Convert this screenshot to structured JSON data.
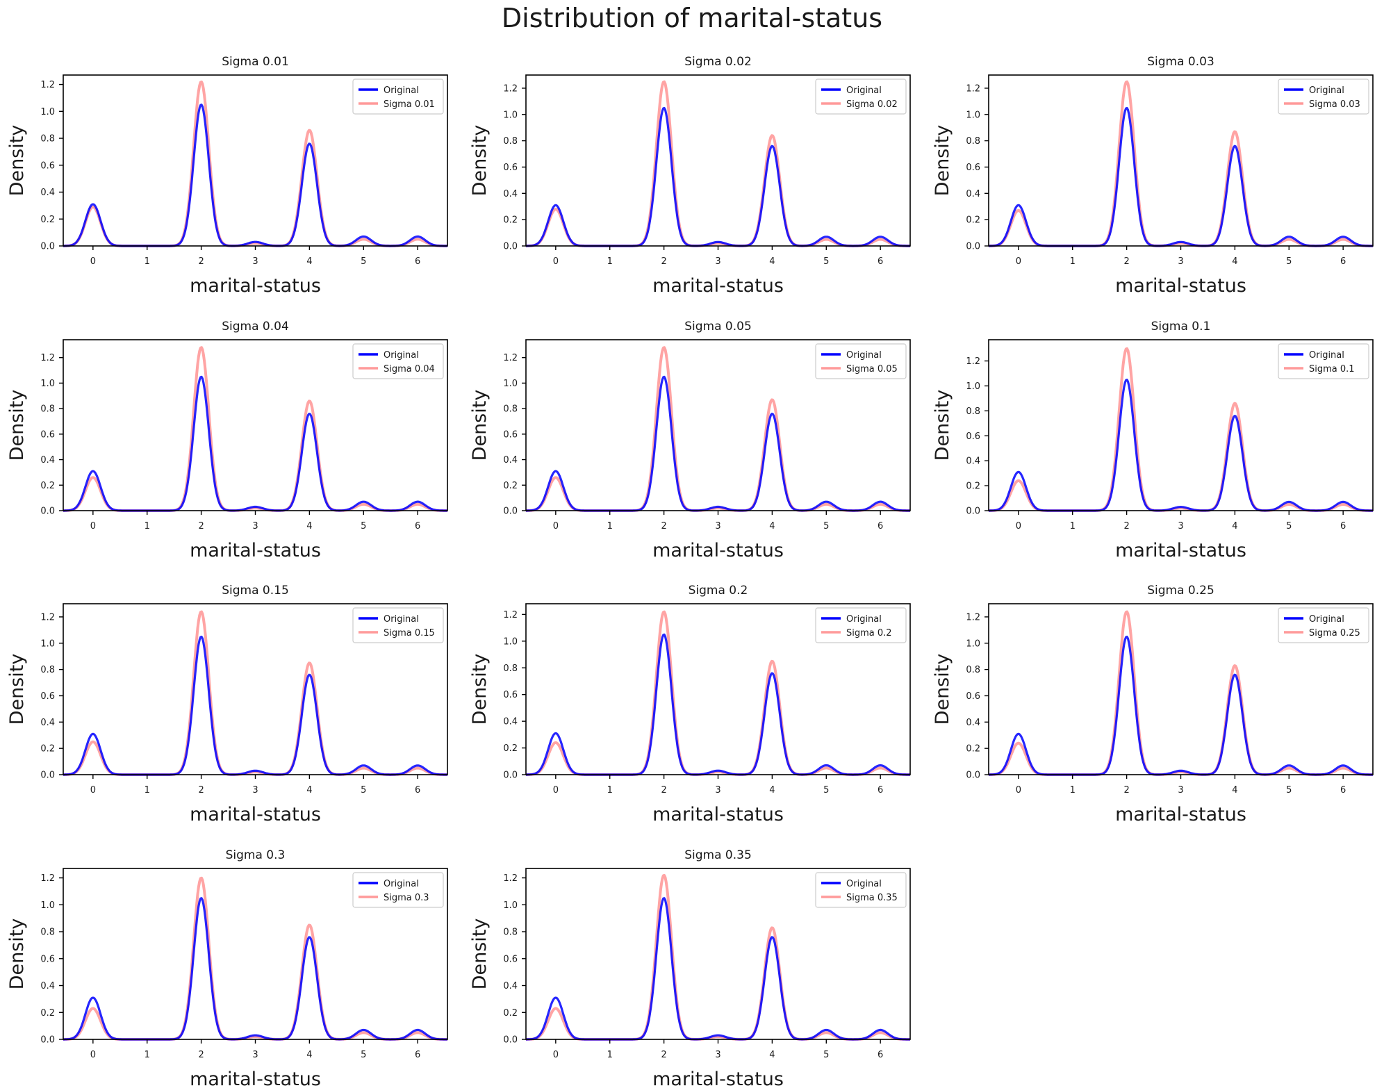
{
  "title": "Distribution of marital-status",
  "colors": {
    "original": "#0000ff",
    "noisy": "#ff9a9a",
    "axis": "#000000"
  },
  "chart_data": [
    {
      "type": "line",
      "title": "Sigma 0.01",
      "xlabel": "marital-status",
      "ylabel": "Density",
      "xlim": [
        -0.55,
        6.55
      ],
      "ylim": [
        0,
        1.27
      ],
      "xticks": [
        0,
        1,
        2,
        3,
        4,
        5,
        6
      ],
      "yticks": [
        0.0,
        0.2,
        0.4,
        0.6,
        0.8,
        1.0,
        1.2
      ],
      "legend": "top-right",
      "series": [
        {
          "name": "Original",
          "peaks": [
            [
              0,
              0.31
            ],
            [
              2,
              1.05
            ],
            [
              3,
              0.03
            ],
            [
              4,
              0.76
            ],
            [
              5,
              0.07
            ],
            [
              6,
              0.07
            ]
          ]
        },
        {
          "name": "Sigma 0.01",
          "peaks": [
            [
              0,
              0.29
            ],
            [
              2,
              1.22
            ],
            [
              3,
              0.02
            ],
            [
              4,
              0.86
            ],
            [
              5,
              0.05
            ],
            [
              6,
              0.05
            ]
          ]
        }
      ]
    },
    {
      "type": "line",
      "title": "Sigma 0.02",
      "xlabel": "marital-status",
      "ylabel": "Density",
      "xlim": [
        -0.55,
        6.55
      ],
      "ylim": [
        0,
        1.3
      ],
      "xticks": [
        0,
        1,
        2,
        3,
        4,
        5,
        6
      ],
      "yticks": [
        0.0,
        0.2,
        0.4,
        0.6,
        0.8,
        1.0,
        1.2
      ],
      "legend": "top-right",
      "series": [
        {
          "name": "Original",
          "peaks": [
            [
              0,
              0.31
            ],
            [
              2,
              1.05
            ],
            [
              3,
              0.03
            ],
            [
              4,
              0.76
            ],
            [
              5,
              0.07
            ],
            [
              6,
              0.07
            ]
          ]
        },
        {
          "name": "Sigma 0.02",
          "peaks": [
            [
              0,
              0.28
            ],
            [
              2,
              1.25
            ],
            [
              3,
              0.02
            ],
            [
              4,
              0.84
            ],
            [
              5,
              0.05
            ],
            [
              6,
              0.05
            ]
          ]
        }
      ]
    },
    {
      "type": "line",
      "title": "Sigma 0.03",
      "xlabel": "marital-status",
      "ylabel": "Density",
      "xlim": [
        -0.55,
        6.55
      ],
      "ylim": [
        0,
        1.3
      ],
      "xticks": [
        0,
        1,
        2,
        3,
        4,
        5,
        6
      ],
      "yticks": [
        0.0,
        0.2,
        0.4,
        0.6,
        0.8,
        1.0,
        1.2
      ],
      "legend": "top-right",
      "series": [
        {
          "name": "Original",
          "peaks": [
            [
              0,
              0.31
            ],
            [
              2,
              1.05
            ],
            [
              3,
              0.03
            ],
            [
              4,
              0.76
            ],
            [
              5,
              0.07
            ],
            [
              6,
              0.07
            ]
          ]
        },
        {
          "name": "Sigma 0.03",
          "peaks": [
            [
              0,
              0.27
            ],
            [
              2,
              1.25
            ],
            [
              3,
              0.02
            ],
            [
              4,
              0.87
            ],
            [
              5,
              0.05
            ],
            [
              6,
              0.05
            ]
          ]
        }
      ]
    },
    {
      "type": "line",
      "title": "Sigma 0.04",
      "xlabel": "marital-status",
      "ylabel": "Density",
      "xlim": [
        -0.55,
        6.55
      ],
      "ylim": [
        0,
        1.34
      ],
      "xticks": [
        0,
        1,
        2,
        3,
        4,
        5,
        6
      ],
      "yticks": [
        0.0,
        0.2,
        0.4,
        0.6,
        0.8,
        1.0,
        1.2
      ],
      "legend": "top-right",
      "series": [
        {
          "name": "Original",
          "peaks": [
            [
              0,
              0.31
            ],
            [
              2,
              1.05
            ],
            [
              3,
              0.03
            ],
            [
              4,
              0.76
            ],
            [
              5,
              0.07
            ],
            [
              6,
              0.07
            ]
          ]
        },
        {
          "name": "Sigma 0.04",
          "peaks": [
            [
              0,
              0.26
            ],
            [
              2,
              1.28
            ],
            [
              3,
              0.02
            ],
            [
              4,
              0.86
            ],
            [
              5,
              0.05
            ],
            [
              6,
              0.05
            ]
          ]
        }
      ]
    },
    {
      "type": "line",
      "title": "Sigma 0.05",
      "xlabel": "marital-status",
      "ylabel": "Density",
      "xlim": [
        -0.55,
        6.55
      ],
      "ylim": [
        0,
        1.34
      ],
      "xticks": [
        0,
        1,
        2,
        3,
        4,
        5,
        6
      ],
      "yticks": [
        0.0,
        0.2,
        0.4,
        0.6,
        0.8,
        1.0,
        1.2
      ],
      "legend": "top-right",
      "series": [
        {
          "name": "Original",
          "peaks": [
            [
              0,
              0.31
            ],
            [
              2,
              1.05
            ],
            [
              3,
              0.03
            ],
            [
              4,
              0.76
            ],
            [
              5,
              0.07
            ],
            [
              6,
              0.07
            ]
          ]
        },
        {
          "name": "Sigma 0.05",
          "peaks": [
            [
              0,
              0.26
            ],
            [
              2,
              1.28
            ],
            [
              3,
              0.02
            ],
            [
              4,
              0.87
            ],
            [
              5,
              0.05
            ],
            [
              6,
              0.05
            ]
          ]
        }
      ]
    },
    {
      "type": "line",
      "title": "Sigma 0.1",
      "xlabel": "marital-status",
      "ylabel": "Density",
      "xlim": [
        -0.55,
        6.55
      ],
      "ylim": [
        0,
        1.37
      ],
      "xticks": [
        0,
        1,
        2,
        3,
        4,
        5,
        6
      ],
      "yticks": [
        0.0,
        0.2,
        0.4,
        0.6,
        0.8,
        1.0,
        1.2
      ],
      "legend": "top-right",
      "series": [
        {
          "name": "Original",
          "peaks": [
            [
              0,
              0.31
            ],
            [
              2,
              1.05
            ],
            [
              3,
              0.03
            ],
            [
              4,
              0.76
            ],
            [
              5,
              0.07
            ],
            [
              6,
              0.07
            ]
          ]
        },
        {
          "name": "Sigma 0.1",
          "peaks": [
            [
              0,
              0.24
            ],
            [
              2,
              1.3
            ],
            [
              3,
              0.02
            ],
            [
              4,
              0.86
            ],
            [
              5,
              0.05
            ],
            [
              6,
              0.05
            ]
          ]
        }
      ]
    },
    {
      "type": "line",
      "title": "Sigma 0.15",
      "xlabel": "marital-status",
      "ylabel": "Density",
      "xlim": [
        -0.55,
        6.55
      ],
      "ylim": [
        0,
        1.3
      ],
      "xticks": [
        0,
        1,
        2,
        3,
        4,
        5,
        6
      ],
      "yticks": [
        0.0,
        0.2,
        0.4,
        0.6,
        0.8,
        1.0,
        1.2
      ],
      "legend": "top-right",
      "series": [
        {
          "name": "Original",
          "peaks": [
            [
              0,
              0.31
            ],
            [
              2,
              1.05
            ],
            [
              3,
              0.03
            ],
            [
              4,
              0.76
            ],
            [
              5,
              0.07
            ],
            [
              6,
              0.07
            ]
          ]
        },
        {
          "name": "Sigma 0.15",
          "peaks": [
            [
              0,
              0.25
            ],
            [
              2,
              1.24
            ],
            [
              3,
              0.02
            ],
            [
              4,
              0.85
            ],
            [
              5,
              0.05
            ],
            [
              6,
              0.05
            ]
          ]
        }
      ]
    },
    {
      "type": "line",
      "title": "Sigma 0.2",
      "xlabel": "marital-status",
      "ylabel": "Density",
      "xlim": [
        -0.55,
        6.55
      ],
      "ylim": [
        0,
        1.28
      ],
      "xticks": [
        0,
        1,
        2,
        3,
        4,
        5,
        6
      ],
      "yticks": [
        0.0,
        0.2,
        0.4,
        0.6,
        0.8,
        1.0,
        1.2
      ],
      "legend": "top-right",
      "series": [
        {
          "name": "Original",
          "peaks": [
            [
              0,
              0.31
            ],
            [
              2,
              1.05
            ],
            [
              3,
              0.03
            ],
            [
              4,
              0.76
            ],
            [
              5,
              0.07
            ],
            [
              6,
              0.07
            ]
          ]
        },
        {
          "name": "Sigma 0.2",
          "peaks": [
            [
              0,
              0.24
            ],
            [
              2,
              1.22
            ],
            [
              3,
              0.02
            ],
            [
              4,
              0.85
            ],
            [
              5,
              0.05
            ],
            [
              6,
              0.05
            ]
          ]
        }
      ]
    },
    {
      "type": "line",
      "title": "Sigma 0.25",
      "xlabel": "marital-status",
      "ylabel": "Density",
      "xlim": [
        -0.55,
        6.55
      ],
      "ylim": [
        0,
        1.3
      ],
      "xticks": [
        0,
        1,
        2,
        3,
        4,
        5,
        6
      ],
      "yticks": [
        0.0,
        0.2,
        0.4,
        0.6,
        0.8,
        1.0,
        1.2
      ],
      "legend": "top-right",
      "series": [
        {
          "name": "Original",
          "peaks": [
            [
              0,
              0.31
            ],
            [
              2,
              1.05
            ],
            [
              3,
              0.03
            ],
            [
              4,
              0.76
            ],
            [
              5,
              0.07
            ],
            [
              6,
              0.07
            ]
          ]
        },
        {
          "name": "Sigma 0.25",
          "peaks": [
            [
              0,
              0.24
            ],
            [
              2,
              1.24
            ],
            [
              3,
              0.02
            ],
            [
              4,
              0.83
            ],
            [
              5,
              0.05
            ],
            [
              6,
              0.05
            ]
          ]
        }
      ]
    },
    {
      "type": "line",
      "title": "Sigma 0.3",
      "xlabel": "marital-status",
      "ylabel": "Density",
      "xlim": [
        -0.55,
        6.55
      ],
      "ylim": [
        0,
        1.27
      ],
      "xticks": [
        0,
        1,
        2,
        3,
        4,
        5,
        6
      ],
      "yticks": [
        0.0,
        0.2,
        0.4,
        0.6,
        0.8,
        1.0,
        1.2
      ],
      "legend": "top-right",
      "series": [
        {
          "name": "Original",
          "peaks": [
            [
              0,
              0.31
            ],
            [
              2,
              1.05
            ],
            [
              3,
              0.03
            ],
            [
              4,
              0.76
            ],
            [
              5,
              0.07
            ],
            [
              6,
              0.07
            ]
          ]
        },
        {
          "name": "Sigma 0.3",
          "peaks": [
            [
              0,
              0.23
            ],
            [
              2,
              1.2
            ],
            [
              3,
              0.02
            ],
            [
              4,
              0.85
            ],
            [
              5,
              0.05
            ],
            [
              6,
              0.05
            ]
          ]
        }
      ]
    },
    {
      "type": "line",
      "title": "Sigma 0.35",
      "xlabel": "marital-status",
      "ylabel": "Density",
      "xlim": [
        -0.55,
        6.55
      ],
      "ylim": [
        0,
        1.27
      ],
      "xticks": [
        0,
        1,
        2,
        3,
        4,
        5,
        6
      ],
      "yticks": [
        0.0,
        0.2,
        0.4,
        0.6,
        0.8,
        1.0,
        1.2
      ],
      "legend": "top-right",
      "series": [
        {
          "name": "Original",
          "peaks": [
            [
              0,
              0.31
            ],
            [
              2,
              1.05
            ],
            [
              3,
              0.03
            ],
            [
              4,
              0.76
            ],
            [
              5,
              0.07
            ],
            [
              6,
              0.07
            ]
          ]
        },
        {
          "name": "Sigma 0.35",
          "peaks": [
            [
              0,
              0.23
            ],
            [
              2,
              1.22
            ],
            [
              3,
              0.02
            ],
            [
              4,
              0.83
            ],
            [
              5,
              0.05
            ],
            [
              6,
              0.05
            ]
          ]
        }
      ]
    }
  ]
}
